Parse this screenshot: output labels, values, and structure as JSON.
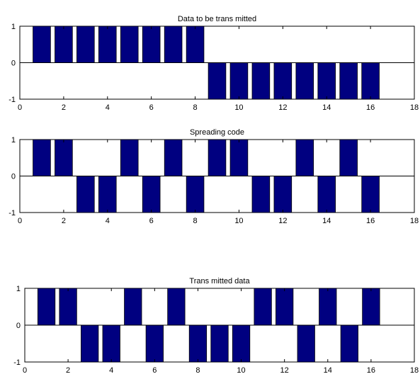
{
  "chart_data": [
    {
      "type": "bar",
      "title": "Data to be trans mitted",
      "xlabel": "",
      "ylabel": "",
      "xlim": [
        0,
        18
      ],
      "ylim": [
        -1,
        1
      ],
      "xticks": [
        0,
        2,
        4,
        6,
        8,
        10,
        12,
        14,
        16,
        18
      ],
      "yticks": [
        -1,
        0,
        1
      ],
      "grid": false,
      "x": [
        1,
        2,
        3,
        4,
        5,
        6,
        7,
        8,
        9,
        10,
        11,
        12,
        13,
        14,
        15,
        16
      ],
      "values": [
        1,
        1,
        1,
        1,
        1,
        1,
        1,
        1,
        -1,
        -1,
        -1,
        -1,
        -1,
        -1,
        -1,
        -1
      ],
      "color": "#000080"
    },
    {
      "type": "bar",
      "title": "Spreading code",
      "xlabel": "",
      "ylabel": "",
      "xlim": [
        0,
        18
      ],
      "ylim": [
        -1,
        1
      ],
      "xticks": [
        0,
        2,
        4,
        6,
        8,
        10,
        12,
        14,
        16,
        18
      ],
      "yticks": [
        -1,
        0,
        1
      ],
      "grid": false,
      "x": [
        1,
        2,
        3,
        4,
        5,
        6,
        7,
        8,
        9,
        10,
        11,
        12,
        13,
        14,
        15,
        16
      ],
      "values": [
        1,
        1,
        -1,
        -1,
        1,
        -1,
        1,
        -1,
        1,
        1,
        -1,
        -1,
        1,
        -1,
        1,
        -1
      ],
      "color": "#000080"
    },
    {
      "type": "bar",
      "title": "Trans mitted data",
      "xlabel": "",
      "ylabel": "",
      "xlim": [
        0,
        18
      ],
      "ylim": [
        -1,
        1
      ],
      "xticks": [
        0,
        2,
        4,
        6,
        8,
        10,
        12,
        14,
        16,
        18
      ],
      "yticks": [
        -1,
        0,
        1
      ],
      "grid": false,
      "x": [
        1,
        2,
        3,
        4,
        5,
        6,
        7,
        8,
        9,
        10,
        11,
        12,
        13,
        14,
        15,
        16
      ],
      "values": [
        1,
        1,
        -1,
        -1,
        1,
        -1,
        1,
        -1,
        -1,
        -1,
        1,
        1,
        -1,
        1,
        -1,
        1
      ],
      "color": "#000080"
    }
  ]
}
